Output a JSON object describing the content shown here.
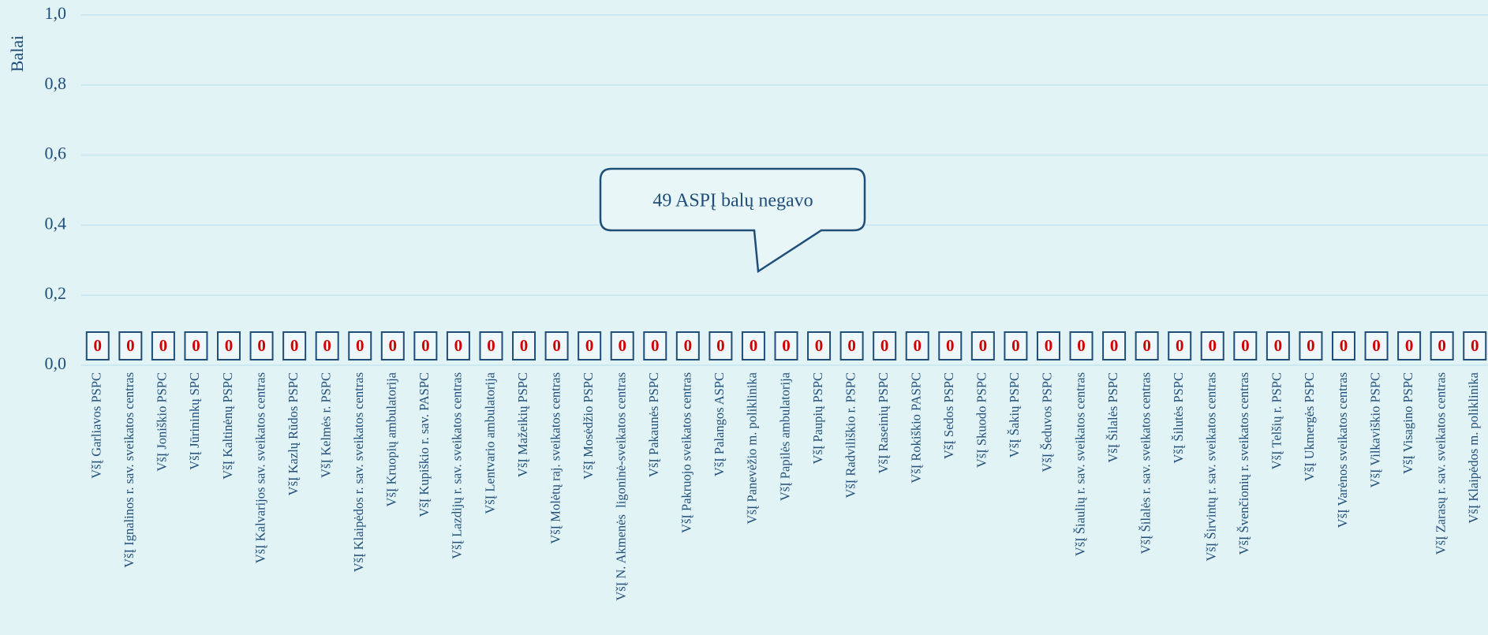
{
  "chart_data": {
    "type": "bar",
    "y_axis_label": "Balai",
    "annotation": "49 ASPĮ balų negavo",
    "categories": [
      "VšĮ Garliavos PSPC",
      "VšĮ Ignalinos r. sav. sveikatos centras",
      "VšĮ Joniškio PSPC",
      "VšĮ Jūrininkų SPC",
      "VšĮ Kaltinėnų PSPC",
      "VšĮ Kalvarijos sav. sveikatos centras",
      "VšĮ Kazlų Rūdos PSPC",
      "VšĮ Kelmės r. PSPC",
      "VšĮ Klaipėdos r. sav. sveikatos centras",
      "VšĮ Kruopių ambulatorija",
      "VšĮ Kupiškio r. sav. PASPC",
      "VšĮ Lazdijų r. sav. sveikatos centras",
      "VšĮ Lentvario ambulatorija",
      "VšĮ Mažeikių PSPC",
      "VšĮ Molėtų raj. sveikatos centras",
      "VšĮ Mosėdžio PSPC",
      "VšĮ N. Akmenės  ligoninė-sveikatos centras",
      "VšĮ Pakaunės PSPC",
      "VšĮ Pakruojo sveikatos centras",
      "VšĮ Palangos ASPC",
      "VšĮ Panevėžio m. poliklinika",
      "VšĮ Papilės ambulatorija",
      "VšĮ Paupių PSPC",
      "VšĮ Radviliškio r. PSPC",
      "VšĮ Raseinių PSPC",
      "VšĮ Rokiškio PASPC",
      "VšĮ Sedos PSPC",
      "VšĮ Skuodo PSPC",
      "VšĮ Šakių PSPC",
      "VšĮ Šeduvos PSPC",
      "VšĮ Šiaulių r. sav. sveikatos centras",
      "VšĮ Šilalės PSPC",
      "VšĮ Šilalės r. sav. sveikatos centras",
      "VšĮ Šilutės PSPC",
      "VšĮ Širvintų r. sav. sveikatos centras",
      "VšĮ Švenčionių r. sveikatos centras",
      "VšĮ Telšių r. PSPC",
      "VšĮ Ukmergės PSPC",
      "VšĮ Varėnos sveikatos centras",
      "VšĮ Vilkaviškio PSPC",
      "VšĮ Visagino PSPC",
      "VšĮ Zarasų r. sav. sveikatos centras",
      "VšĮ Klaipėdos m. poliklinika"
    ],
    "values": [
      0,
      0,
      0,
      0,
      0,
      0,
      0,
      0,
      0,
      0,
      0,
      0,
      0,
      0,
      0,
      0,
      0,
      0,
      0,
      0,
      0,
      0,
      0,
      0,
      0,
      0,
      0,
      0,
      0,
      0,
      0,
      0,
      0,
      0,
      0,
      0,
      0,
      0,
      0,
      0,
      0,
      0,
      0
    ],
    "color": "#1f4e79",
    "label_color": "#d00000",
    "ylim": [
      0,
      1
    ],
    "yticks": [
      {
        "value": 0,
        "label": "0,0"
      },
      {
        "value": 0.2,
        "label": "0,2"
      },
      {
        "value": 0.4,
        "label": "0,4"
      },
      {
        "value": 0.6,
        "label": "0,6"
      },
      {
        "value": 0.8,
        "label": "0,8"
      },
      {
        "value": 1,
        "label": "1,0"
      }
    ],
    "grid": true
  }
}
